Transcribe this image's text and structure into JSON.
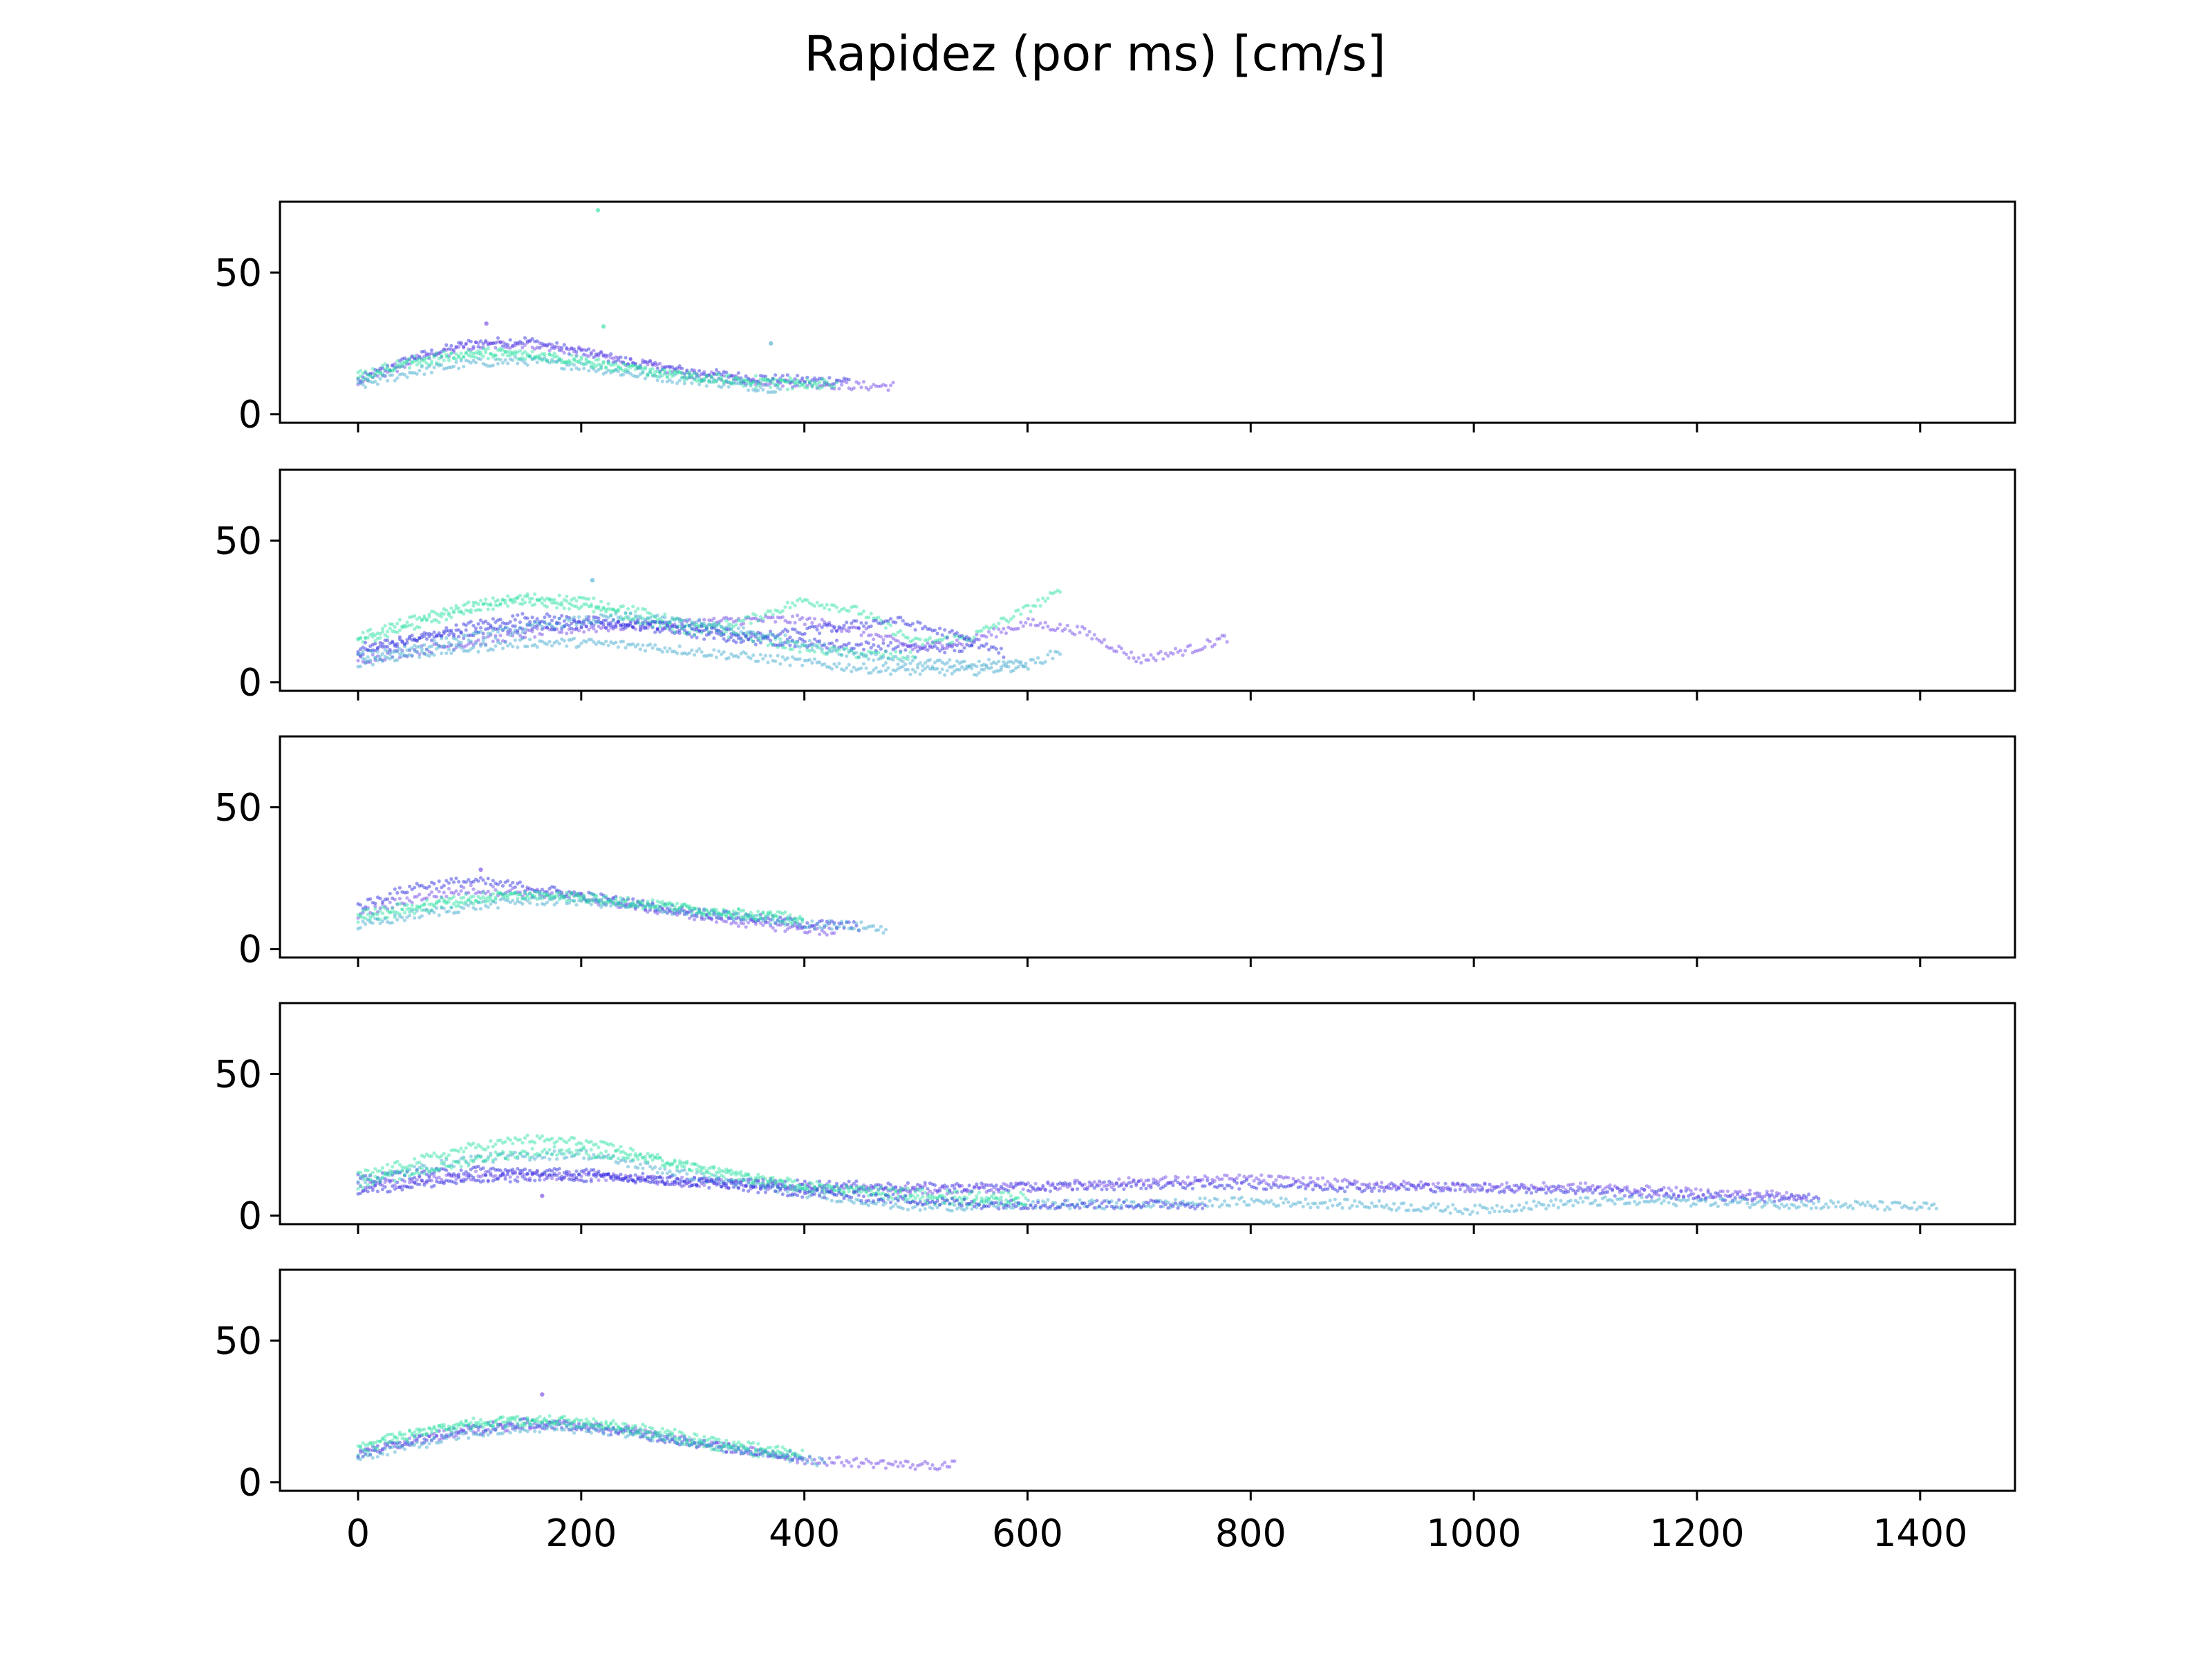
{
  "title": "Rapidez (por ms) [cm/s]",
  "chart_data": {
    "type": "scatter",
    "title": "Rapidez (por ms) [cm/s]",
    "xlabel": "",
    "ylabel": "",
    "xlim": [
      -70,
      1485
    ],
    "ylim": [
      -3,
      75
    ],
    "xticks": [
      0,
      200,
      400,
      600,
      800,
      1000,
      1200,
      1400
    ],
    "yticks": [
      0,
      50
    ],
    "xtick_labels_on_bottom_only": true,
    "shared_x": true,
    "grid": false,
    "legend": "none",
    "marker": "small dots, semi-transparent",
    "colors": {
      "blue": "#2222dd",
      "purple": "#6a3ce6",
      "green": "#26e0a0",
      "aqua": "#3aa6cc"
    },
    "panels": [
      {
        "id": "panel-1",
        "series": [
          {
            "color": "#2222dd",
            "x": [
              0,
              50,
              100,
              150,
              200,
              250,
              300,
              350,
              400,
              440
            ],
            "y": [
              12,
              20,
              25,
              26,
              22,
              18,
              15,
              13,
              12,
              12
            ]
          },
          {
            "color": "#6a3ce6",
            "x": [
              0,
              50,
              100,
              150,
              200,
              250,
              300,
              350,
              400,
              450,
              480
            ],
            "y": [
              11,
              19,
              24,
              25,
              22,
              18,
              14,
              12,
              11,
              10,
              10
            ]
          },
          {
            "color": "#26e0a0",
            "x": [
              0,
              50,
              100,
              150,
              200,
              250,
              300,
              350,
              400,
              430
            ],
            "y": [
              12,
              18,
              21,
              21,
              19,
              16,
              13,
              11,
              10,
              10
            ]
          },
          {
            "color": "#3aa6cc",
            "x": [
              0,
              50,
              100,
              150,
              200,
              250,
              300,
              350,
              380
            ],
            "y": [
              10,
              15,
              18,
              19,
              17,
              14,
              12,
              10,
              9
            ]
          },
          {
            "color": "#26e0a0",
            "x": [
              0,
              60,
              120,
              180,
              240,
              300,
              360,
              420
            ],
            "y": [
              14,
              20,
              22,
              20,
              16,
              13,
              12,
              11
            ]
          }
        ],
        "outliers": [
          {
            "color": "#26e0a0",
            "x": 215,
            "y": 72
          },
          {
            "color": "#26e0a0",
            "x": 220,
            "y": 31
          },
          {
            "color": "#3aa6cc",
            "x": 370,
            "y": 25
          },
          {
            "color": "#6a3ce6",
            "x": 115,
            "y": 32
          }
        ]
      },
      {
        "id": "panel-2",
        "series": [
          {
            "color": "#2222dd",
            "x": [
              0,
              50,
              100,
              150,
              200,
              250,
              300,
              350,
              400,
              450,
              500,
              550
            ],
            "y": [
              10,
              15,
              20,
              23,
              22,
              20,
              17,
              15,
              14,
              13,
              12,
              12
            ]
          },
          {
            "color": "#6a3ce6",
            "x": [
              0,
              50,
              100,
              150,
              200,
              250,
              300,
              350,
              400,
              450,
              500,
              550,
              600,
              650,
              700,
              750,
              780
            ],
            "y": [
              8,
              11,
              14,
              17,
              19,
              20,
              21,
              22,
              22,
              18,
              12,
              15,
              21,
              18,
              8,
              12,
              16
            ]
          },
          {
            "color": "#26e0a0",
            "x": [
              0,
              50,
              100,
              150,
              200,
              250,
              300,
              350,
              400,
              450,
              500,
              550,
              600,
              630
            ],
            "y": [
              14,
              20,
              26,
              29,
              27,
              22,
              18,
              22,
              29,
              25,
              14,
              16,
              26,
              32
            ]
          },
          {
            "color": "#3aa6cc",
            "x": [
              0,
              50,
              100,
              150,
              200,
              250,
              300,
              350,
              400,
              450,
              500,
              550,
              600,
              630
            ],
            "y": [
              7,
              10,
              12,
              14,
              14,
              13,
              11,
              9,
              7,
              5,
              4,
              4,
              6,
              11
            ]
          },
          {
            "color": "#26e0a0",
            "x": [
              0,
              50,
              100,
              150,
              200,
              250,
              300,
              350,
              400,
              450,
              500
            ],
            "y": [
              16,
              22,
              27,
              30,
              29,
              25,
              20,
              16,
              12,
              10,
              9
            ]
          },
          {
            "color": "#2222dd",
            "x": [
              0,
              60,
              120,
              180,
              240,
              300,
              360,
              420,
              480,
              540,
              580
            ],
            "y": [
              12,
              16,
              18,
              20,
              21,
              19,
              16,
              19,
              22,
              16,
              10
            ]
          },
          {
            "color": "#3aa6cc",
            "x": [
              0,
              60,
              120,
              180,
              240,
              300,
              360,
              420,
              480,
              540,
              600
            ],
            "y": [
              9,
              13,
              17,
              21,
              23,
              21,
              17,
              12,
              8,
              6,
              7
            ]
          }
        ],
        "outliers": [
          {
            "color": "#3aa6cc",
            "x": 210,
            "y": 36
          }
        ]
      },
      {
        "id": "panel-3",
        "series": [
          {
            "color": "#2222dd",
            "x": [
              0,
              50,
              100,
              150,
              200,
              250,
              300,
              350,
              400,
              450
            ],
            "y": [
              15,
              22,
              24,
              22,
              19,
              16,
              13,
              11,
              9,
              8
            ]
          },
          {
            "color": "#6a3ce6",
            "x": [
              0,
              50,
              100,
              150,
              200,
              250,
              300,
              350,
              400,
              430
            ],
            "y": [
              12,
              18,
              21,
              20,
              18,
              15,
              12,
              9,
              7,
              6
            ]
          },
          {
            "color": "#26e0a0",
            "x": [
              0,
              50,
              100,
              150,
              200,
              250,
              300,
              350,
              400
            ],
            "y": [
              10,
              14,
              17,
              19,
              18,
              16,
              14,
              12,
              10
            ]
          },
          {
            "color": "#3aa6cc",
            "x": [
              0,
              50,
              100,
              150,
              200,
              250,
              300,
              350,
              400,
              450,
              475
            ],
            "y": [
              8,
              12,
              15,
              17,
              17,
              15,
              13,
              11,
              9,
              8,
              7
            ]
          },
          {
            "color": "#26e0a0",
            "x": [
              0,
              60,
              120,
              180,
              240,
              300,
              360,
              400
            ],
            "y": [
              12,
              16,
              19,
              19,
              17,
              14,
              12,
              11
            ]
          }
        ],
        "outliers": [
          {
            "color": "#6a3ce6",
            "x": 110,
            "y": 28
          }
        ]
      },
      {
        "id": "panel-4",
        "series": [
          {
            "color": "#2222dd",
            "x": [
              0,
              100,
              200,
              300,
              400,
              500,
              600,
              700,
              800,
              900,
              1000,
              1100,
              1200,
              1310
            ],
            "y": [
              13,
              16,
              15,
              12,
              11,
              10,
              10,
              11,
              11,
              10,
              10,
              9,
              7,
              6
            ]
          },
          {
            "color": "#6a3ce6",
            "x": [
              0,
              100,
              200,
              300,
              400,
              500,
              600,
              700,
              800,
              900,
              1000,
              1100,
              1200,
              1300
            ],
            "y": [
              10,
              14,
              14,
              12,
              10,
              9,
              10,
              12,
              13,
              11,
              10,
              10,
              8,
              7
            ]
          },
          {
            "color": "#3aa6cc",
            "x": [
              0,
              100,
              200,
              300,
              400,
              500,
              600,
              700,
              800,
              900,
              1000,
              1100,
              1200,
              1300,
              1415
            ],
            "y": [
              12,
              20,
              22,
              14,
              8,
              3,
              4,
              4,
              5,
              4,
              2,
              5,
              5,
              4,
              3
            ]
          },
          {
            "color": "#26e0a0",
            "x": [
              0,
              50,
              100,
              150,
              200,
              250,
              300,
              350,
              400,
              450,
              500,
              550,
              600
            ],
            "y": [
              14,
              19,
              24,
              27,
              26,
              22,
              17,
              13,
              10,
              9,
              8,
              7,
              7
            ]
          },
          {
            "color": "#26e0a0",
            "x": [
              0,
              60,
              120,
              180,
              240,
              300,
              360,
              420,
              480,
              540,
              600
            ],
            "y": [
              11,
              16,
              21,
              23,
              21,
              17,
              13,
              10,
              7,
              5,
              5
            ]
          },
          {
            "color": "#2222dd",
            "x": [
              0,
              80,
              160,
              240,
              320,
              400,
              480,
              560,
              640,
              720,
              760
            ],
            "y": [
              9,
              12,
              14,
              13,
              11,
              8,
              6,
              4,
              4,
              4,
              4
            ]
          }
        ],
        "outliers": [
          {
            "color": "#6a3ce6",
            "x": 165,
            "y": 7
          }
        ]
      },
      {
        "id": "panel-5",
        "series": [
          {
            "color": "#2222dd",
            "x": [
              0,
              50,
              100,
              150,
              200,
              250,
              300,
              350,
              400
            ],
            "y": [
              10,
              15,
              19,
              21,
              20,
              17,
              14,
              11,
              9
            ]
          },
          {
            "color": "#6a3ce6",
            "x": [
              0,
              50,
              100,
              150,
              200,
              250,
              300,
              350,
              400,
              450,
              500,
              535
            ],
            "y": [
              10,
              15,
              18,
              20,
              20,
              18,
              14,
              11,
              8,
              7,
              6,
              6
            ]
          },
          {
            "color": "#26e0a0",
            "x": [
              0,
              50,
              100,
              150,
              200,
              250,
              300,
              350,
              390
            ],
            "y": [
              11,
              17,
              21,
              22,
              21,
              18,
              14,
              11,
              9
            ]
          },
          {
            "color": "#3aa6cc",
            "x": [
              0,
              50,
              100,
              150,
              200,
              250,
              300,
              350,
              400,
              420
            ],
            "y": [
              9,
              13,
              17,
              19,
              19,
              17,
              14,
              11,
              8,
              7
            ]
          },
          {
            "color": "#26e0a0",
            "x": [
              0,
              60,
              120,
              180,
              240,
              300,
              360,
              400
            ],
            "y": [
              13,
              18,
              21,
              22,
              20,
              16,
              12,
              10
            ]
          }
        ],
        "outliers": [
          {
            "color": "#6a3ce6",
            "x": 165,
            "y": 31
          }
        ]
      }
    ]
  }
}
